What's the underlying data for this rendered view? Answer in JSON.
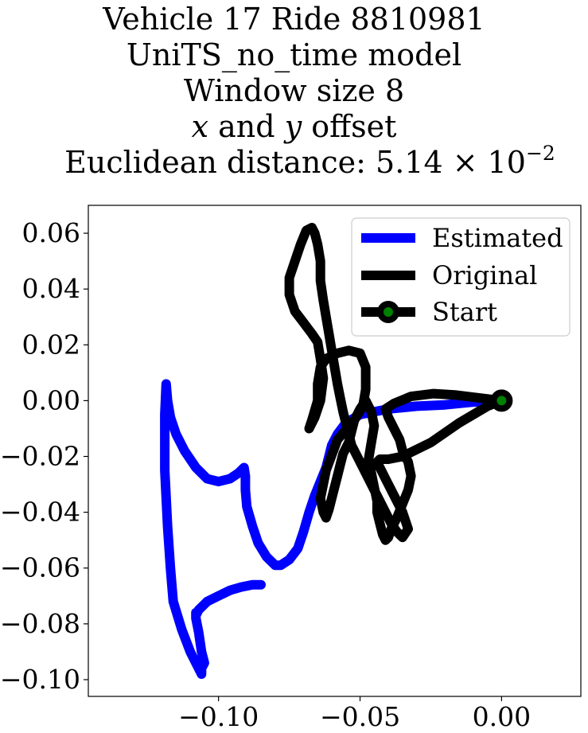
{
  "chart_data": {
    "type": "line",
    "title_lines": [
      "Vehicle 17 Ride 8810981",
      "UniTS_no_time model",
      "Window size 8",
      "x and y offset",
      "Euclidean distance: 5.14 × 10−2"
    ],
    "title_parts": {
      "line1": "Vehicle 17 Ride 8810981",
      "line2": "UniTS_no_time model",
      "line3": "Window size 8",
      "line4_x": "x",
      "line4_mid": " and ",
      "line4_y": "y",
      "line4_end": " offset",
      "line5_prefix": "Euclidean distance: 5.14 × 10",
      "line5_exp": "−2"
    },
    "xlim": [
      -0.146,
      0.028
    ],
    "ylim": [
      -0.106,
      0.07
    ],
    "xticks": [
      -0.1,
      -0.05,
      0.0
    ],
    "xtick_labels": [
      "−0.10",
      "−0.05",
      "0.00"
    ],
    "yticks": [
      0.06,
      0.04,
      0.02,
      0.0,
      -0.02,
      -0.04,
      -0.06,
      -0.08,
      -0.1
    ],
    "ytick_labels": [
      "0.06",
      "0.04",
      "0.02",
      "0.00",
      "−0.02",
      "−0.04",
      "−0.06",
      "−0.08",
      "−0.10"
    ],
    "grid": false,
    "legend_position": "top-right",
    "series": [
      {
        "name": "Estimated",
        "color": "#0000ff",
        "x": [
          0.0,
          -0.01,
          -0.02,
          -0.03,
          -0.04,
          -0.05,
          -0.055,
          -0.058,
          -0.06,
          -0.061,
          -0.062,
          -0.064,
          -0.066,
          -0.068,
          -0.07,
          -0.072,
          -0.075,
          -0.078,
          -0.08,
          -0.083,
          -0.086,
          -0.088,
          -0.09,
          -0.0905,
          -0.0905,
          -0.091,
          -0.093,
          -0.096,
          -0.1,
          -0.104,
          -0.108,
          -0.112,
          -0.115,
          -0.117,
          -0.118,
          -0.1185,
          -0.119,
          -0.119,
          -0.118,
          -0.117,
          -0.116,
          -0.113,
          -0.11,
          -0.107,
          -0.106,
          -0.106,
          -0.105,
          -0.106,
          -0.107,
          -0.108,
          -0.108,
          -0.108,
          -0.107,
          -0.104,
          -0.1,
          -0.096,
          -0.092,
          -0.088,
          -0.085
        ],
        "y": [
          0.0,
          -0.0005,
          -0.0015,
          -0.002,
          -0.003,
          -0.005,
          -0.008,
          -0.012,
          -0.016,
          -0.02,
          -0.024,
          -0.029,
          -0.034,
          -0.04,
          -0.047,
          -0.053,
          -0.057,
          -0.059,
          -0.059,
          -0.056,
          -0.051,
          -0.045,
          -0.038,
          -0.032,
          -0.027,
          -0.024,
          -0.026,
          -0.028,
          -0.029,
          -0.028,
          -0.024,
          -0.018,
          -0.012,
          -0.006,
          0.0,
          0.006,
          -0.005,
          -0.025,
          -0.045,
          -0.06,
          -0.072,
          -0.082,
          -0.09,
          -0.096,
          -0.098,
          -0.096,
          -0.094,
          -0.09,
          -0.083,
          -0.078,
          -0.076,
          -0.077,
          -0.075,
          -0.072,
          -0.07,
          -0.068,
          -0.0668,
          -0.066,
          -0.066
        ]
      },
      {
        "name": "Original",
        "color": "#000000",
        "x": [
          0.0,
          -0.008,
          -0.016,
          -0.024,
          -0.032,
          -0.038,
          -0.041,
          -0.04,
          -0.038,
          -0.036,
          -0.035,
          -0.033,
          -0.032,
          -0.033,
          -0.035,
          -0.037,
          -0.039,
          -0.04,
          -0.041,
          -0.042,
          -0.043,
          -0.044,
          -0.044,
          -0.045,
          -0.046,
          -0.047,
          -0.046,
          -0.045,
          -0.046,
          -0.048,
          -0.05,
          -0.052,
          -0.053,
          -0.054,
          -0.056,
          -0.057,
          -0.058,
          -0.059,
          -0.06,
          -0.061,
          -0.062,
          -0.063,
          -0.064,
          -0.062,
          -0.058,
          -0.052,
          -0.049,
          -0.048,
          -0.048,
          -0.05,
          -0.054,
          -0.058,
          -0.062,
          -0.064,
          -0.065,
          -0.065,
          -0.067,
          -0.068,
          -0.066,
          -0.064,
          -0.063,
          -0.064,
          -0.065,
          -0.067,
          -0.07,
          -0.073,
          -0.075,
          -0.075,
          -0.073,
          -0.071,
          -0.069,
          -0.067,
          -0.066,
          -0.065,
          -0.064,
          -0.064,
          -0.063,
          -0.062,
          -0.061,
          -0.06,
          -0.059,
          -0.058,
          -0.057,
          -0.056,
          -0.055,
          -0.054,
          -0.053,
          -0.051,
          -0.049,
          -0.047,
          -0.045,
          -0.043,
          -0.041,
          -0.039,
          -0.037,
          -0.035,
          -0.033,
          -0.035,
          -0.038,
          -0.041,
          -0.043,
          -0.044,
          -0.043,
          -0.04,
          -0.035,
          -0.025,
          -0.015,
          -0.005,
          0.0
        ],
        "y": [
          0.0,
          0.001,
          0.002,
          0.0025,
          0.0015,
          -0.001,
          -0.003,
          -0.006,
          -0.01,
          -0.014,
          -0.018,
          -0.022,
          -0.027,
          -0.032,
          -0.037,
          -0.042,
          -0.046,
          -0.049,
          -0.05,
          -0.048,
          -0.044,
          -0.04,
          -0.036,
          -0.031,
          -0.026,
          -0.021,
          -0.015,
          -0.009,
          -0.004,
          0.0,
          -0.003,
          -0.007,
          -0.011,
          -0.015,
          -0.019,
          -0.023,
          -0.027,
          -0.031,
          -0.035,
          -0.039,
          -0.042,
          -0.04,
          -0.035,
          -0.025,
          -0.014,
          -0.007,
          -0.002,
          0.004,
          0.012,
          0.017,
          0.018,
          0.017,
          0.015,
          0.012,
          0.006,
          0.0,
          -0.007,
          -0.01,
          -0.006,
          0.0,
          0.008,
          0.015,
          0.021,
          0.024,
          0.028,
          0.032,
          0.038,
          0.044,
          0.05,
          0.056,
          0.061,
          0.062,
          0.06,
          0.056,
          0.05,
          0.043,
          0.036,
          0.03,
          0.024,
          0.018,
          0.012,
          0.006,
          0.001,
          -0.004,
          -0.008,
          -0.012,
          -0.016,
          -0.02,
          -0.024,
          -0.028,
          -0.032,
          -0.036,
          -0.04,
          -0.044,
          -0.047,
          -0.049,
          -0.046,
          -0.04,
          -0.034,
          -0.028,
          -0.024,
          -0.022,
          -0.021,
          -0.021,
          -0.02,
          -0.015,
          -0.008,
          -0.002,
          0.0
        ]
      }
    ],
    "start": {
      "name": "Start",
      "x": 0.0,
      "y": 0.0,
      "marker_face": "#008000",
      "marker_edge": "#000000"
    }
  }
}
